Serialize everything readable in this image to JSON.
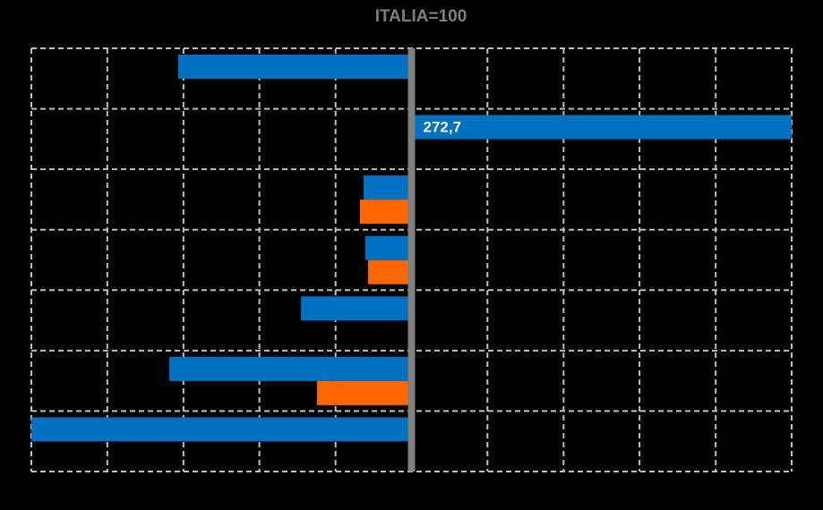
{
  "chart_data": {
    "type": "hbar",
    "title": "ITALIA=100",
    "categories": [
      null,
      null,
      null,
      null,
      null,
      null,
      null
    ],
    "base": 100,
    "series": [
      {
        "color": "#0070c0",
        "values": [
          -6,
          272.7,
          78.2,
          79,
          49.8,
          -10,
          -72.7
        ],
        "value_labels": [
          null,
          "272,7",
          null,
          null,
          null,
          null,
          null
        ]
      },
      {
        "color": "#ff6600",
        "values": [
          null,
          null,
          76.6,
          80.3,
          null,
          57.1,
          null
        ]
      }
    ],
    "xlim": [
      -72.7,
      272.7
    ],
    "xticks": [
      -72.7,
      -38.2,
      -3.6,
      30.9,
      65.5,
      100,
      134.5,
      169.1,
      203.6,
      238.2,
      272.7
    ],
    "grid": true
  }
}
